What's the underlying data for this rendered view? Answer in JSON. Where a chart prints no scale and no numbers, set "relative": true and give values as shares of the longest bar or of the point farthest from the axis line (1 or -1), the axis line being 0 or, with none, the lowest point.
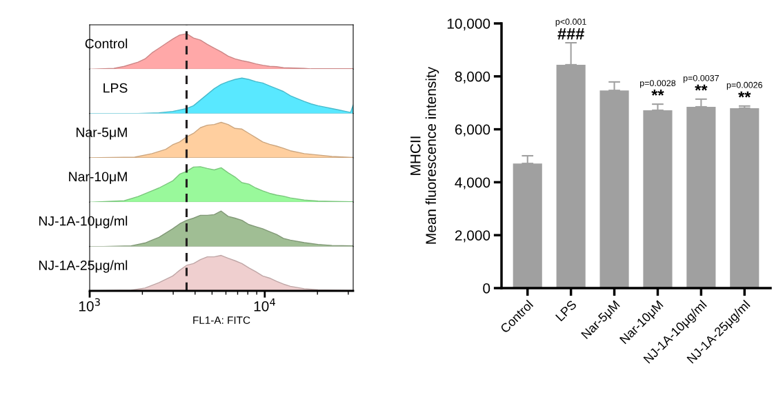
{
  "chart_data": [
    {
      "type": "area",
      "ylabel": "Control",
      "relative": true,
      "color": "#ffa8a8",
      "log": "x",
      "tick_labels": false,
      "xlim": [
        1000,
        32000
      ],
      "ref_lines": [
        {
          "axis": "x",
          "value": 3576,
          "color": "#231f20",
          "line_style": "dashed"
        }
      ],
      "x": [
        1000,
        1375,
        1576,
        1891,
        2071,
        2269,
        2485,
        2721,
        2981,
        3265,
        3576,
        3917,
        4290,
        4698,
        5146,
        5636,
        6173,
        6761,
        7405,
        8111,
        8884,
        9730,
        10660,
        11677,
        12789,
        16804,
        18402,
        32000
      ],
      "values": [
        0,
        0.02,
        0.08,
        0.2,
        0.29,
        0.46,
        0.59,
        0.72,
        0.85,
        0.96,
        1,
        0.88,
        0.82,
        0.7,
        0.59,
        0.49,
        0.37,
        0.29,
        0.24,
        0.2,
        0.15,
        0.11,
        0.08,
        0.07,
        0.04,
        0.02,
        0.01,
        0.01
      ]
    },
    {
      "type": "area",
      "ylabel": "LPS",
      "relative": true,
      "color": "#59e8ff",
      "log": "x",
      "tick_labels": false,
      "xlim": [
        1000,
        32000
      ],
      "ref_lines": [
        {
          "axis": "x",
          "value": 3576,
          "color": "#231f20",
          "line_style": "dashed"
        }
      ],
      "x": [
        1000,
        1891,
        2485,
        2981,
        3576,
        3917,
        4290,
        4698,
        5146,
        5636,
        6173,
        6761,
        7405,
        8111,
        8884,
        9730,
        10660,
        11677,
        12789,
        14005,
        15343,
        16804,
        18402,
        20155,
        22080,
        24180,
        26480,
        29010,
        30910,
        32000
      ],
      "values": [
        0,
        0,
        0.02,
        0.06,
        0.14,
        0.22,
        0.38,
        0.54,
        0.7,
        0.82,
        0.9,
        0.96,
        1,
        0.96,
        0.9,
        0.86,
        0.78,
        0.7,
        0.62,
        0.5,
        0.42,
        0.34,
        0.27,
        0.22,
        0.18,
        0.14,
        0.1,
        0.06,
        0.03,
        0.24
      ]
    },
    {
      "type": "area",
      "ylabel": "Nar-5μM",
      "relative": true,
      "color": "#ffcf9f",
      "log": "x",
      "tick_labels": false,
      "xlim": [
        1000,
        32000
      ],
      "ref_lines": [
        {
          "axis": "x",
          "value": 3576,
          "color": "#231f20",
          "line_style": "dashed"
        }
      ],
      "x": [
        1000,
        1807,
        2269,
        2721,
        2981,
        3265,
        3576,
        3917,
        4290,
        4698,
        5146,
        5636,
        6173,
        6761,
        7405,
        8111,
        8884,
        9730,
        10660,
        11677,
        12789,
        14005,
        16804,
        20155,
        24180,
        29010,
        32000
      ],
      "values": [
        0,
        0.02,
        0.12,
        0.24,
        0.37,
        0.45,
        0.59,
        0.69,
        0.85,
        0.92,
        0.94,
        1,
        0.94,
        0.83,
        0.81,
        0.69,
        0.57,
        0.45,
        0.38,
        0.33,
        0.27,
        0.2,
        0.12,
        0.08,
        0.04,
        0.02,
        0.01
      ]
    },
    {
      "type": "area",
      "ylabel": "Nar-10μM",
      "relative": true,
      "color": "#99f99b",
      "log": "x",
      "tick_labels": false,
      "xlim": [
        1000,
        32000
      ],
      "ref_lines": [
        {
          "axis": "x",
          "value": 3576,
          "color": "#231f20",
          "line_style": "dashed"
        }
      ],
      "x": [
        1000,
        1576,
        1891,
        2269,
        2485,
        2981,
        3265,
        3576,
        3917,
        4290,
        4698,
        5146,
        5636,
        6173,
        6761,
        7405,
        8111,
        8884,
        9730,
        10660,
        11677,
        12789,
        14005,
        16804,
        20155,
        24180,
        32000
      ],
      "values": [
        0,
        0.04,
        0.16,
        0.32,
        0.4,
        0.6,
        0.79,
        0.87,
        0.99,
        1,
        0.95,
        0.91,
        0.97,
        0.83,
        0.71,
        0.55,
        0.51,
        0.4,
        0.32,
        0.25,
        0.2,
        0.17,
        0.12,
        0.06,
        0.03,
        0.02,
        0.01
      ]
    },
    {
      "type": "area",
      "ylabel": "NJ-1A-10μg/ml",
      "relative": true,
      "color": "#a0be94",
      "log": "x",
      "tick_labels": false,
      "xlim": [
        1000,
        32000
      ],
      "ref_lines": [
        {
          "axis": "x",
          "value": 3576,
          "color": "#231f20",
          "line_style": "dashed"
        }
      ],
      "x": [
        1000,
        1200,
        1727,
        2071,
        2269,
        2485,
        2721,
        2981,
        3265,
        3576,
        3917,
        4290,
        4698,
        5146,
        5636,
        6173,
        6761,
        7405,
        8111,
        8884,
        9730,
        10660,
        11677,
        12789,
        14005,
        16804,
        20155,
        24180,
        32000
      ],
      "values": [
        0,
        0,
        0.02,
        0.1,
        0.18,
        0.26,
        0.38,
        0.5,
        0.64,
        0.74,
        0.8,
        0.88,
        0.88,
        0.9,
        1,
        0.85,
        0.8,
        0.74,
        0.62,
        0.56,
        0.5,
        0.42,
        0.34,
        0.23,
        0.18,
        0.11,
        0.06,
        0.03,
        0.02
      ]
    },
    {
      "type": "area",
      "ylabel": "NJ-1A-25μg/ml",
      "xlabel": "FL1-A: FITC",
      "relative": true,
      "color": "#efcfcf",
      "log": "x",
      "tick_labels": "x",
      "xlim": [
        1000,
        32000
      ],
      "xticks": [
        {
          "value": 1000,
          "label": "10$^{3}$"
        },
        {
          "value": 2000,
          "label": null
        },
        {
          "value": 3000,
          "label": null
        },
        {
          "value": 4000,
          "label": null
        },
        {
          "value": 5000,
          "label": null
        },
        {
          "value": 6000,
          "label": null
        },
        {
          "value": 7000,
          "label": null
        },
        {
          "value": 8000,
          "label": null
        },
        {
          "value": 9000,
          "label": null
        },
        {
          "value": 10000,
          "label": "10$^{4}$"
        },
        {
          "value": 20000,
          "label": null
        },
        {
          "value": 30000,
          "label": null
        }
      ],
      "ref_lines": [
        {
          "axis": "x",
          "value": 3576,
          "color": "#231f20",
          "line_style": "dashed"
        }
      ],
      "x": [
        1000,
        1727,
        2071,
        2485,
        2981,
        3265,
        3576,
        3917,
        4290,
        4698,
        5146,
        5636,
        6173,
        6761,
        7405,
        8111,
        8884,
        9730,
        10660,
        11677,
        12789,
        14005,
        16804,
        20155,
        24180,
        32000
      ],
      "values": [
        0,
        0.02,
        0.08,
        0.23,
        0.42,
        0.58,
        0.72,
        0.77,
        0.88,
        0.96,
        0.96,
        1,
        0.92,
        0.85,
        0.77,
        0.65,
        0.54,
        0.42,
        0.36,
        0.27,
        0.19,
        0.13,
        0.06,
        0.03,
        0.02,
        0.01
      ]
    },
    {
      "type": "bar",
      "ylabel": "MHCII\nMean fluorescence intensity",
      "color": "#a0a0a0",
      "categories": [
        "Control",
        "LPS",
        "Nar-5μM",
        "Nar-10μM",
        "NJ-1A-10μg/ml",
        "NJ-1A-25μg/ml"
      ],
      "values": [
        4710,
        8440,
        7470,
        6720,
        6850,
        6800
      ],
      "errors": [
        [
          4710,
          5000
        ],
        [
          8440,
          9270
        ],
        [
          7470,
          7790
        ],
        [
          6720,
          6950
        ],
        [
          6850,
          7140
        ],
        [
          6800,
          6880
        ]
      ],
      "ylim": [
        0,
        10000
      ],
      "yticks": [
        {
          "value": 0,
          "label": "0"
        },
        {
          "value": 2000,
          "label": "2,000"
        },
        {
          "value": 4000,
          "label": "4,000"
        },
        {
          "value": 6000,
          "label": "6,000"
        },
        {
          "value": 8000,
          "label": "8,000"
        },
        {
          "value": 10000,
          "label": "10,000"
        }
      ],
      "annotations": [
        {
          "text": "###",
          "x": "LPS",
          "y": 9270
        },
        {
          "text": "p<0.001",
          "x": "LPS",
          "y": 9270
        },
        {
          "text": "**",
          "x": "Nar-10μM",
          "y": 6950
        },
        {
          "text": "p=0.0028",
          "x": "Nar-10μM",
          "y": 6950
        },
        {
          "text": "**",
          "x": "NJ-1A-10μg/ml",
          "y": 7140
        },
        {
          "text": "p=0.0037",
          "x": "NJ-1A-10μg/ml",
          "y": 7140
        },
        {
          "text": "**",
          "x": "NJ-1A-25μg/ml",
          "y": 6880
        },
        {
          "text": "p=0.0026",
          "x": "NJ-1A-25μg/ml",
          "y": 6880
        }
      ]
    }
  ]
}
